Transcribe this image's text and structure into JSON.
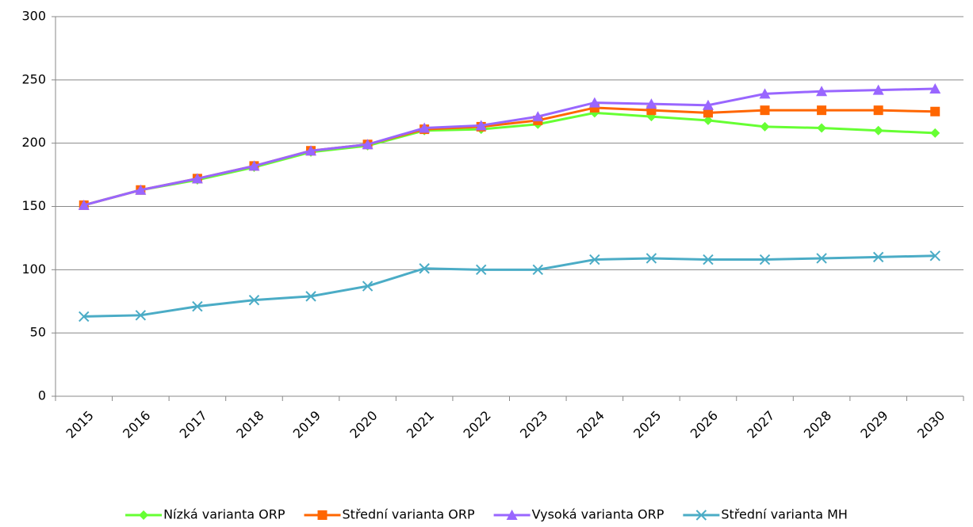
{
  "chart_data": {
    "type": "line",
    "categories": [
      "2015",
      "2016",
      "2017",
      "2018",
      "2019",
      "2020",
      "2021",
      "2022",
      "2023",
      "2024",
      "2025",
      "2026",
      "2027",
      "2028",
      "2029",
      "2030"
    ],
    "series": [
      {
        "name": "Nízká varianta ORP",
        "color": "#66ff33",
        "marker": "diamond",
        "values": [
          151,
          163,
          171,
          181,
          193,
          198,
          210,
          211,
          215,
          224,
          221,
          218,
          213,
          212,
          210,
          208
        ]
      },
      {
        "name": "Střední varianta ORP",
        "color": "#ff6600",
        "marker": "square",
        "values": [
          151,
          163,
          172,
          182,
          194,
          199,
          211,
          213,
          218,
          228,
          226,
          224,
          226,
          226,
          226,
          225
        ]
      },
      {
        "name": "Vysoká varianta ORP",
        "color": "#9966ff",
        "marker": "triangle",
        "values": [
          151,
          163,
          172,
          182,
          194,
          199,
          212,
          214,
          221,
          232,
          231,
          230,
          239,
          241,
          242,
          243
        ]
      },
      {
        "name": "Střední varianta MH",
        "color": "#4bacc6",
        "marker": "x",
        "values": [
          63,
          64,
          71,
          76,
          79,
          87,
          101,
          100,
          100,
          108,
          109,
          108,
          108,
          109,
          110,
          111
        ]
      }
    ],
    "ylim": [
      0,
      300
    ],
    "yticks": [
      0,
      50,
      100,
      150,
      200,
      250,
      300
    ],
    "grid": true,
    "legend": "bottom"
  }
}
